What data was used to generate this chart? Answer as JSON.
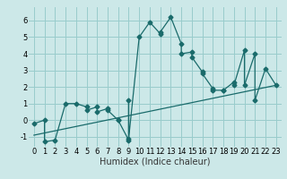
{
  "xlabel": "Humidex (Indice chaleur)",
  "background_color": "#cce8e8",
  "grid_color": "#99cccc",
  "line_color": "#1a6b6b",
  "xlim": [
    -0.5,
    23.5
  ],
  "ylim": [
    -1.6,
    6.8
  ],
  "yticks": [
    -1,
    0,
    1,
    2,
    3,
    4,
    5,
    6
  ],
  "xticks": [
    0,
    1,
    2,
    3,
    4,
    5,
    6,
    7,
    8,
    9,
    10,
    11,
    12,
    13,
    14,
    15,
    16,
    17,
    18,
    19,
    20,
    21,
    22,
    23
  ],
  "xtick_labels": [
    "0",
    "1",
    "2",
    "3",
    "4",
    "5",
    "6",
    "7",
    "8",
    "9",
    "10",
    "11",
    "12",
    "13",
    "14",
    "15",
    "16",
    "17",
    "18",
    "19",
    "20",
    "21",
    "22",
    "23"
  ],
  "curve_x": [
    0,
    1,
    1,
    2,
    3,
    4,
    5,
    5,
    6,
    6,
    7,
    7,
    8,
    8,
    9,
    9,
    9,
    10,
    11,
    12,
    12,
    13,
    14,
    14,
    15,
    15,
    16,
    16,
    17,
    17,
    18,
    18,
    19,
    19,
    20,
    20,
    21,
    21,
    22,
    23
  ],
  "curve_y": [
    -0.2,
    0.0,
    -1.3,
    -1.2,
    1.0,
    1.0,
    0.8,
    0.6,
    0.8,
    0.5,
    0.7,
    0.6,
    0.0,
    0.0,
    -1.2,
    1.2,
    -1.1,
    5.0,
    5.9,
    5.2,
    5.3,
    6.2,
    4.6,
    4.0,
    4.1,
    3.8,
    2.9,
    2.8,
    1.9,
    1.8,
    1.8,
    1.8,
    2.3,
    2.1,
    4.2,
    2.1,
    4.0,
    1.2,
    3.1,
    2.1
  ],
  "trend_x": [
    0,
    23
  ],
  "trend_y": [
    -0.9,
    2.1
  ],
  "marker": "D",
  "markersize": 2.5,
  "linewidth": 0.9,
  "tick_fontsize": 6,
  "xlabel_fontsize": 7
}
